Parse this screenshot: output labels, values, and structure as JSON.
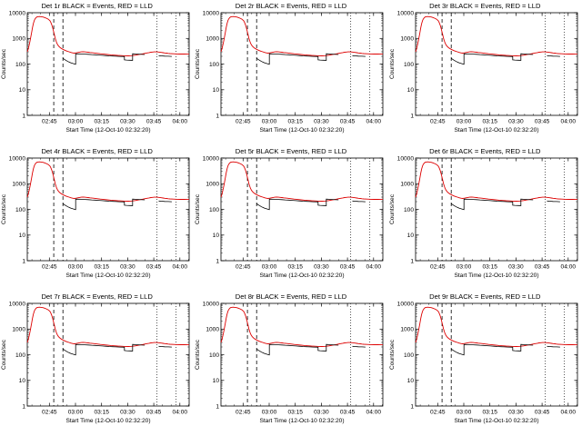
{
  "page": {
    "background": "#ffffff",
    "grid": "3x3 detector light-curve panels"
  },
  "legend": {
    "black_series": "Events",
    "red_series": "LLD"
  },
  "panels": [
    {
      "id": "det-1r",
      "title": "Det 1r BLACK = Events, RED = LLD"
    },
    {
      "id": "det-2r",
      "title": "Det 2r BLACK = Events, RED = LLD"
    },
    {
      "id": "det-3r",
      "title": "Det 3r BLACK = Events, RED = LLD"
    },
    {
      "id": "det-4r",
      "title": "Det 4r BLACK = Events, RED = LLD"
    },
    {
      "id": "det-5r",
      "title": "Det 5r BLACK = Events, RED = LLD"
    },
    {
      "id": "det-6r",
      "title": "Det 6r BLACK = Events, RED = LLD"
    },
    {
      "id": "det-7r",
      "title": "Det 7r BLACK = Events, RED = LLD"
    },
    {
      "id": "det-8r",
      "title": "Det 8r BLACK = Events, RED = LLD"
    },
    {
      "id": "det-9r",
      "title": "Det 9r BLACK = Events, RED = LLD"
    }
  ],
  "chart_data": {
    "type": "line",
    "title": "RHESSI detector rate panels (9 identical-format plots)",
    "xlabel": "Start Time (12-Oct-10 02:32:20)",
    "ylabel": "Counts/sec",
    "x_unit": "minutes since 02:32:20",
    "xlim": [
      0,
      93
    ],
    "ylim": [
      1,
      10000
    ],
    "yscale": "log",
    "xticks": [
      {
        "pos": 12.67,
        "label": "02:45"
      },
      {
        "pos": 27.67,
        "label": "03:00"
      },
      {
        "pos": 42.67,
        "label": "03:15"
      },
      {
        "pos": 57.67,
        "label": "03:30"
      },
      {
        "pos": 72.67,
        "label": "03:45"
      },
      {
        "pos": 87.67,
        "label": "04:00"
      }
    ],
    "yticks": [
      {
        "v": 1,
        "label": "1"
      },
      {
        "v": 10,
        "label": "10"
      },
      {
        "v": 100,
        "label": "100"
      },
      {
        "v": 1000,
        "label": "1000"
      },
      {
        "v": 10000,
        "label": "10000"
      }
    ],
    "dashed_lines_x": [
      15.2,
      20.5
    ],
    "dotted_lines_x": [
      74.5,
      85.5
    ],
    "series": [
      {
        "name": "LLD",
        "color": "#dd0000",
        "points": [
          [
            0,
            300
          ],
          [
            0.5,
            380
          ],
          [
            1,
            520
          ],
          [
            1.5,
            750
          ],
          [
            2,
            1100
          ],
          [
            2.5,
            1700
          ],
          [
            3,
            2600
          ],
          [
            3.5,
            3800
          ],
          [
            4,
            5000
          ],
          [
            4.5,
            5800
          ],
          [
            5,
            6400
          ],
          [
            5.5,
            6800
          ],
          [
            6,
            7000
          ],
          [
            7,
            7100
          ],
          [
            8,
            7000
          ],
          [
            9,
            6800
          ],
          [
            10,
            6500
          ],
          [
            11,
            6100
          ],
          [
            12,
            5600
          ],
          [
            13,
            4900
          ],
          [
            13.5,
            4300
          ],
          [
            14,
            3500
          ],
          [
            14.5,
            2700
          ],
          [
            15,
            2000
          ],
          [
            15.5,
            1450
          ],
          [
            16,
            1050
          ],
          [
            16.5,
            800
          ],
          [
            17,
            650
          ],
          [
            17.5,
            560
          ],
          [
            18,
            500
          ],
          [
            19,
            430
          ],
          [
            20,
            390
          ],
          [
            21,
            360
          ],
          [
            22,
            335
          ],
          [
            23,
            315
          ],
          [
            24,
            300
          ],
          [
            25,
            285
          ],
          [
            26,
            272
          ],
          [
            27,
            265
          ],
          [
            28,
            272
          ],
          [
            29,
            282
          ],
          [
            30,
            292
          ],
          [
            31,
            298
          ],
          [
            32,
            300
          ],
          [
            33,
            298
          ],
          [
            34,
            293
          ],
          [
            35,
            288
          ],
          [
            36,
            282
          ],
          [
            38,
            272
          ],
          [
            40,
            262
          ],
          [
            42,
            252
          ],
          [
            44,
            243
          ],
          [
            46,
            235
          ],
          [
            48,
            228
          ],
          [
            50,
            222
          ],
          [
            52,
            217
          ],
          [
            54,
            213
          ],
          [
            56,
            210
          ],
          [
            58,
            209
          ],
          [
            60,
            212
          ],
          [
            62,
            220
          ],
          [
            64,
            233
          ],
          [
            66,
            248
          ],
          [
            68,
            264
          ],
          [
            70,
            280
          ],
          [
            71,
            288
          ],
          [
            72,
            294
          ],
          [
            73,
            297
          ],
          [
            74,
            298
          ],
          [
            75,
            295
          ],
          [
            76,
            290
          ],
          [
            77,
            284
          ],
          [
            78,
            277
          ],
          [
            79,
            271
          ],
          [
            80,
            265
          ],
          [
            81,
            260
          ],
          [
            82,
            256
          ],
          [
            84,
            251
          ],
          [
            86,
            248
          ],
          [
            88,
            246
          ],
          [
            90,
            245
          ],
          [
            92,
            244
          ],
          [
            93,
            244
          ]
        ]
      },
      {
        "name": "Events",
        "color": "#000000",
        "segments": [
          [
            [
              20.5,
              168
            ],
            [
              21,
              158
            ],
            [
              22,
              142
            ],
            [
              23,
              130
            ],
            [
              24,
              120
            ],
            [
              25,
              112
            ],
            [
              26,
              106
            ],
            [
              27,
              101
            ],
            [
              27.8,
              98
            ],
            [
              27.8,
              252
            ],
            [
              29,
              250
            ],
            [
              31,
              247
            ],
            [
              33,
              243
            ],
            [
              35,
              239
            ],
            [
              37,
              234
            ],
            [
              39,
              229
            ],
            [
              41,
              224
            ],
            [
              43,
              219
            ],
            [
              45,
              214
            ],
            [
              47,
              209
            ],
            [
              49,
              205
            ],
            [
              51,
              201
            ],
            [
              53,
              198
            ],
            [
              55,
              196
            ],
            [
              55.8,
              195
            ],
            [
              55.8,
              146
            ],
            [
              57,
              143
            ],
            [
              59,
              141
            ],
            [
              60.5,
              140
            ],
            [
              60.5,
              252
            ],
            [
              62,
              248
            ],
            [
              64,
              243
            ],
            [
              66,
              238
            ],
            [
              67.5,
              235
            ]
          ],
          [
            [
              75.5,
              212
            ],
            [
              77,
              208
            ],
            [
              79,
              204
            ],
            [
              81,
              201
            ],
            [
              83,
              199
            ]
          ]
        ]
      }
    ]
  }
}
